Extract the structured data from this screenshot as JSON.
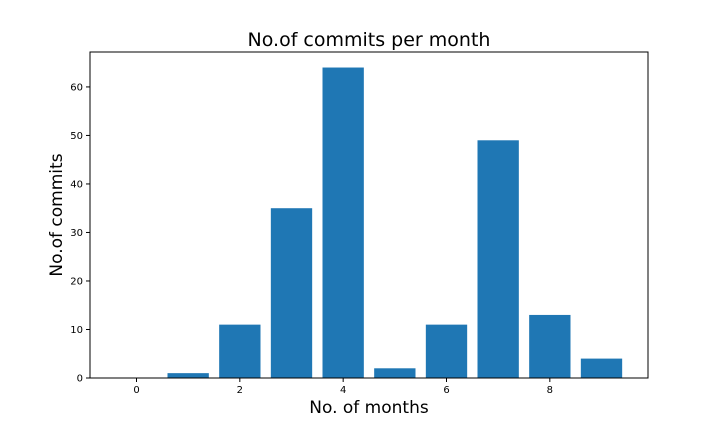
{
  "chart_data": {
    "type": "bar",
    "title": "No.of commits per month",
    "xlabel": "No. of months",
    "ylabel": "No.of commits",
    "x": [
      0,
      1,
      2,
      3,
      4,
      5,
      6,
      7,
      8,
      9
    ],
    "values": [
      0,
      1,
      11,
      35,
      64,
      2,
      11,
      49,
      13,
      4
    ],
    "xticks": [
      0,
      2,
      4,
      6,
      8
    ],
    "yticks": [
      0,
      10,
      20,
      30,
      40,
      50,
      60
    ],
    "xlim": [
      -0.9,
      9.9
    ],
    "ylim": [
      0,
      67.2
    ],
    "bar_color": "#1f77b4",
    "grid": false
  }
}
